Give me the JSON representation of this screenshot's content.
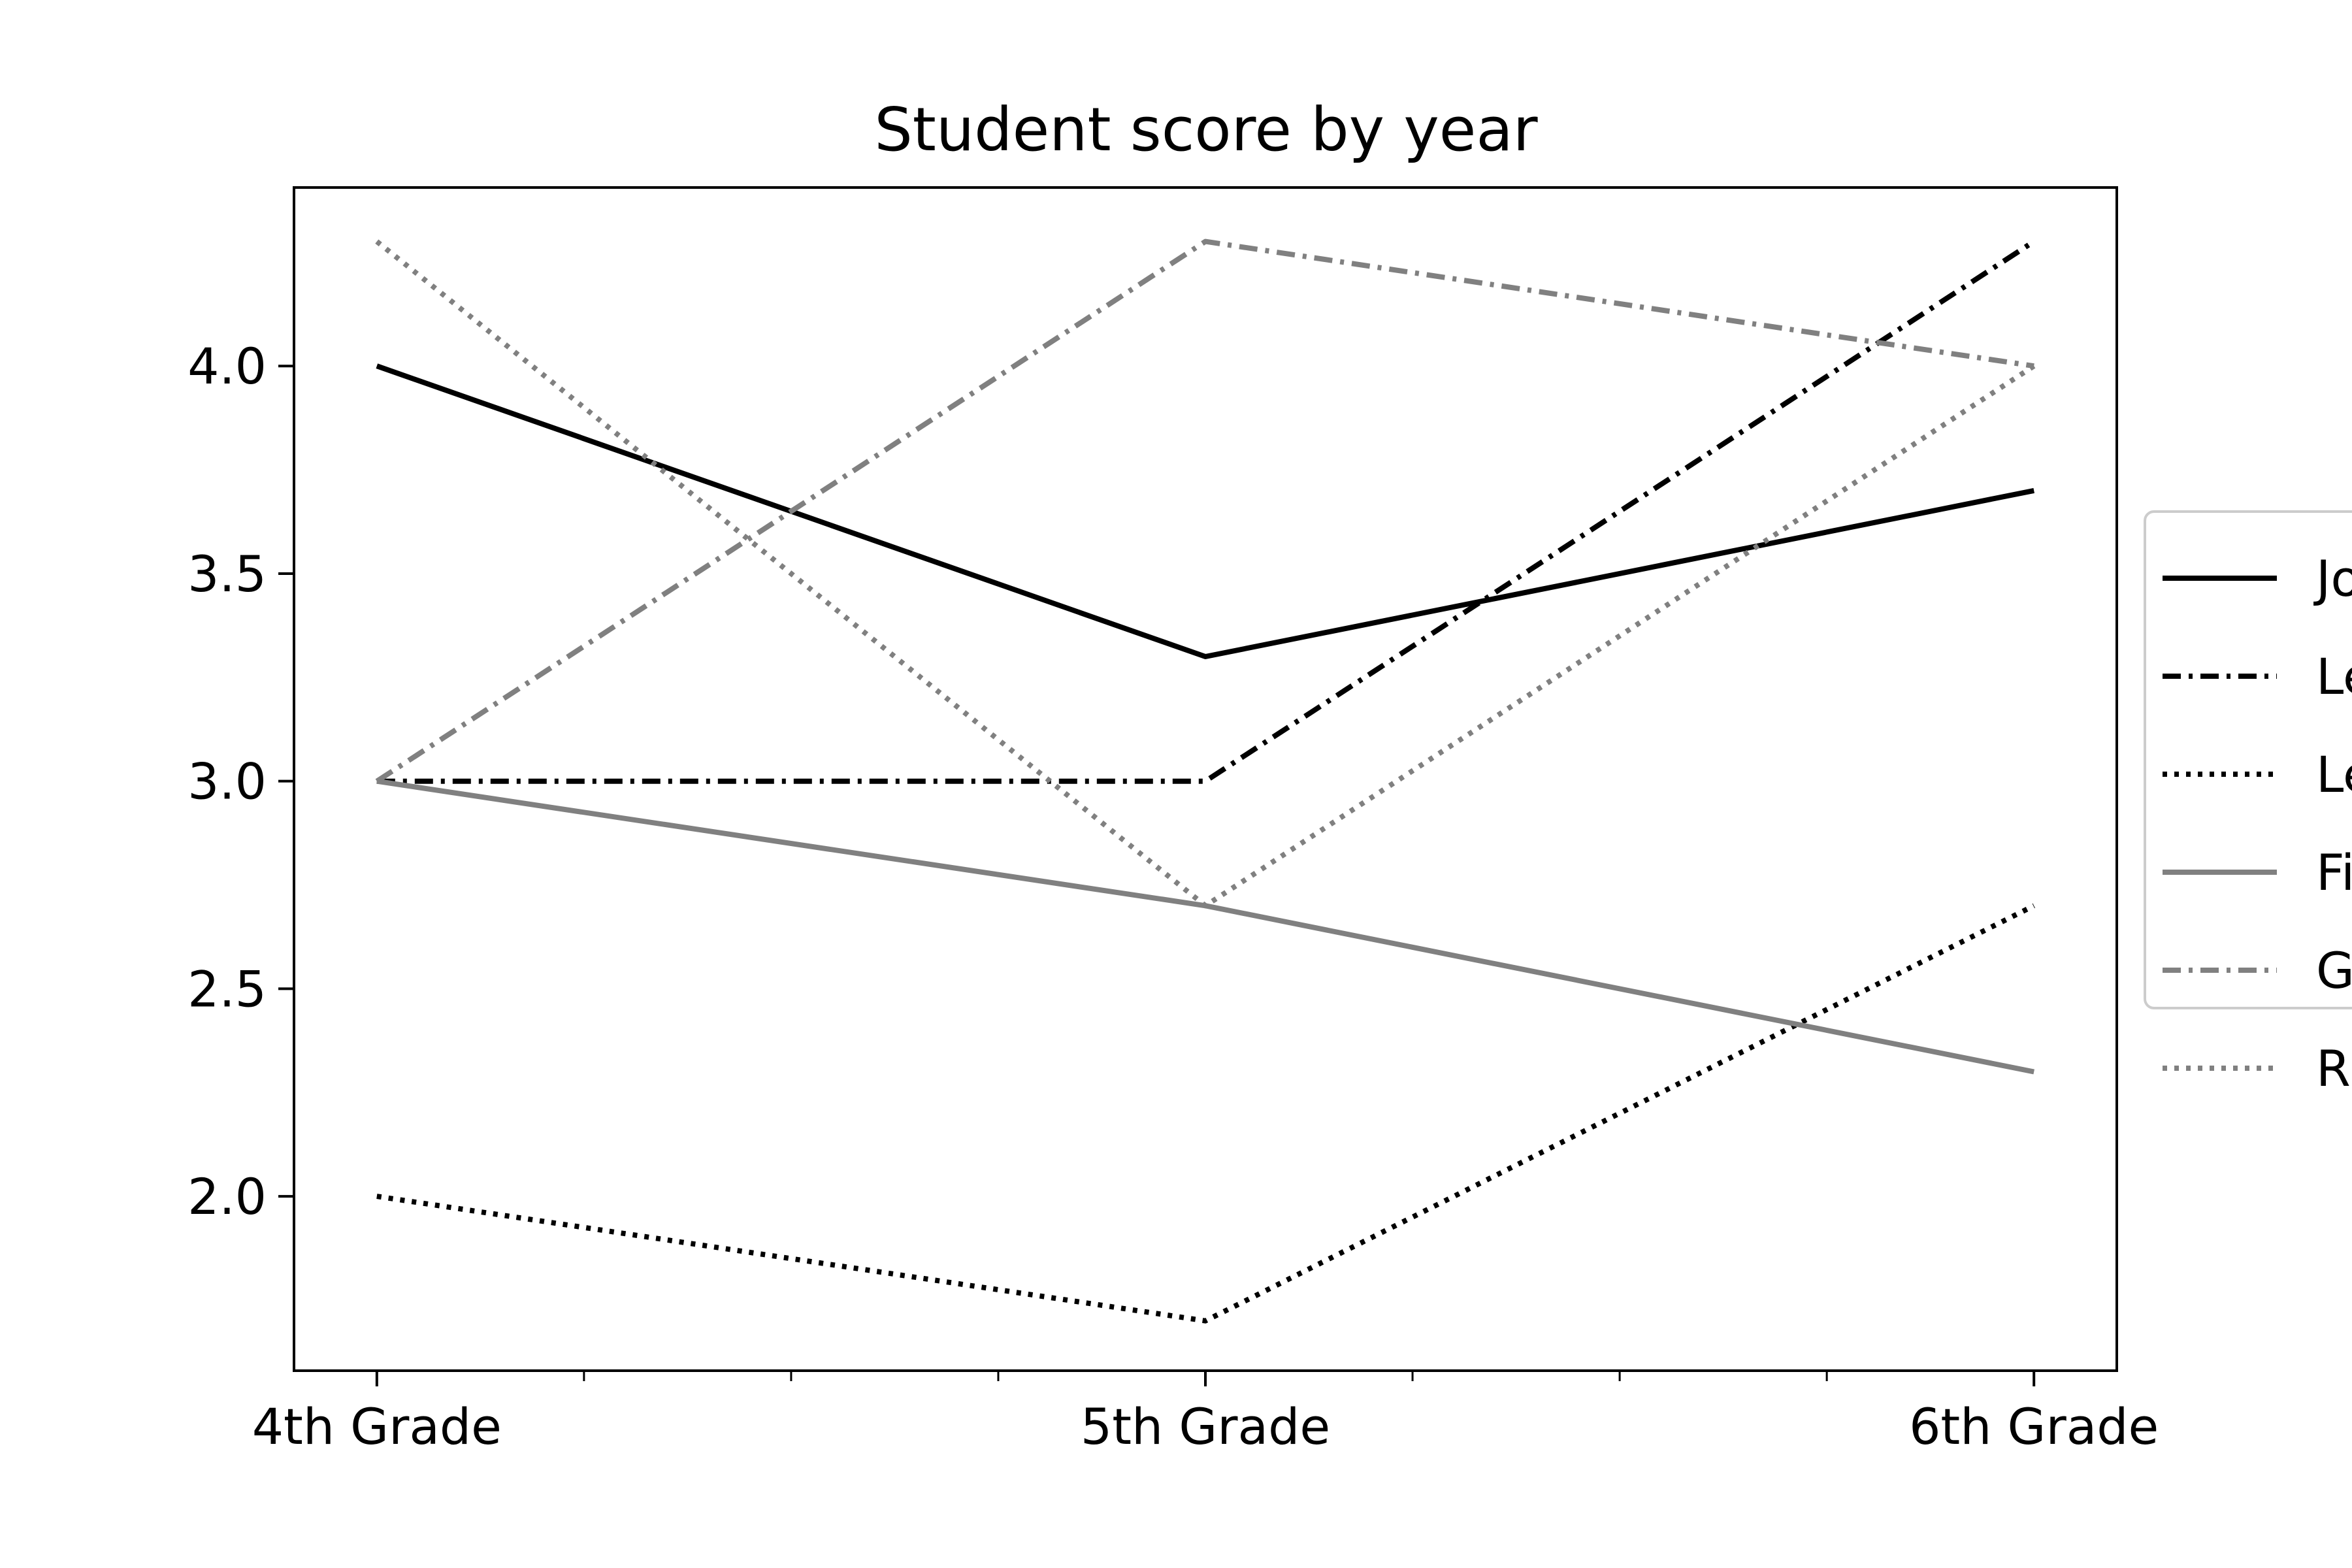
{
  "chart_data": {
    "type": "line",
    "title": "Student score by year",
    "xlabel": "",
    "ylabel": "",
    "categories": [
      "4th Grade",
      "5th Grade",
      "6th Grade"
    ],
    "ylim": [
      1.58,
      4.43
    ],
    "yticks": [
      2.0,
      2.5,
      3.0,
      3.5,
      4.0
    ],
    "ytick_labels": [
      "2.0",
      "2.5",
      "3.0",
      "3.5",
      "4.0"
    ],
    "minor_xticks": true,
    "grid": false,
    "legend_position": "right",
    "series": [
      {
        "name": "Jo",
        "values": [
          4.0,
          3.3,
          3.7
        ],
        "color": "#000000",
        "style": "solid"
      },
      {
        "name": "Le",
        "values": [
          3.0,
          3.0,
          4.3
        ],
        "color": "#000000",
        "style": "dashdot"
      },
      {
        "name": "Le",
        "values": [
          2.0,
          1.7,
          2.7
        ],
        "color": "#000000",
        "style": "dotted"
      },
      {
        "name": "Fi",
        "values": [
          3.0,
          2.7,
          2.3
        ],
        "color": "#808080",
        "style": "solid"
      },
      {
        "name": "G",
        "values": [
          3.0,
          4.3,
          4.0
        ],
        "color": "#808080",
        "style": "dashdot"
      },
      {
        "name": "R",
        "values": [
          4.3,
          2.7,
          4.0
        ],
        "color": "#808080",
        "style": "dotted"
      }
    ]
  }
}
